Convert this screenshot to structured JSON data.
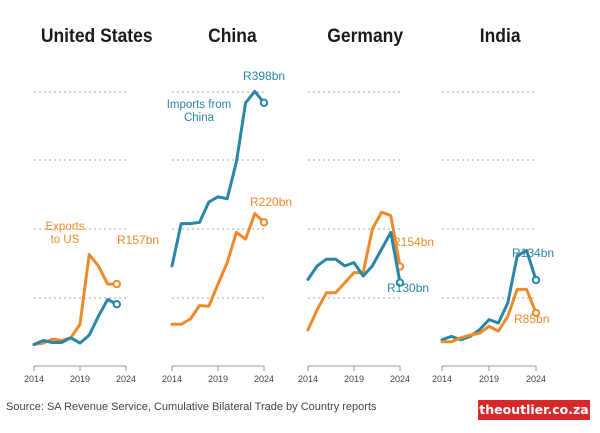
{
  "chart_data": {
    "type": "line",
    "x": [
      2014,
      2015,
      2016,
      2017,
      2018,
      2019,
      2020,
      2021,
      2022,
      2023,
      2024
    ],
    "ylim": [
      0,
      420
    ],
    "grid": true,
    "panels": [
      {
        "title": "United States",
        "xticks": [
          "2014",
          "2019",
          "2024"
        ],
        "series": [
          {
            "name": "Exports to US",
            "color": "#ef8a2b",
            "values": [
              38,
              40,
              46,
              44,
              48,
              68,
              172,
              155,
              128,
              128,
              null
            ],
            "end_label": "R157bn"
          },
          {
            "name": "",
            "color": "#2a86a6",
            "values": [
              38,
              44,
              41,
              41,
              48,
              40,
              52,
              80,
              105,
              98,
              null
            ],
            "end_label": ""
          }
        ],
        "annotations": [
          "Exports",
          "to US"
        ]
      },
      {
        "title": "China",
        "xticks": [
          "2014",
          "2019",
          "2024"
        ],
        "series": [
          {
            "name": "Imports from China",
            "color": "#2a86a6",
            "values": [
              155,
              218,
              218,
              220,
              250,
              258,
              255,
              310,
              398,
              415,
              398
            ],
            "end_label": "R398bn"
          },
          {
            "name": "",
            "color": "#ef8a2b",
            "values": [
              68,
              68,
              76,
              96,
              95,
              128,
              160,
              205,
              195,
              233,
              220
            ],
            "end_label": "R220bn"
          }
        ],
        "annotations": [
          "Imports from",
          "China"
        ]
      },
      {
        "title": "Germany",
        "xticks": [
          "2014",
          "2019",
          "2024"
        ],
        "series": [
          {
            "name": "",
            "color": "#ef8a2b",
            "values": [
              60,
              90,
              115,
              115,
              130,
              145,
              145,
              210,
              235,
              230,
              154
            ],
            "end_label": "R154bn"
          },
          {
            "name": "",
            "color": "#2a86a6",
            "values": [
              135,
              155,
              165,
              165,
              155,
              160,
              140,
              155,
              180,
              205,
              130
            ],
            "end_label": "R130bn"
          }
        ],
        "annotations": []
      },
      {
        "title": "India",
        "xticks": [
          "2014",
          "2019",
          "2024"
        ],
        "series": [
          {
            "name": "",
            "color": "#2a86a6",
            "values": [
              45,
              50,
              45,
              50,
              60,
              75,
              70,
              100,
              170,
              178,
              134
            ],
            "end_label": "R134bn"
          },
          {
            "name": "",
            "color": "#ef8a2b",
            "values": [
              42,
              42,
              48,
              52,
              55,
              65,
              58,
              80,
              120,
              120,
              85
            ],
            "end_label": "R85bn"
          }
        ],
        "annotations": []
      }
    ]
  },
  "source": "Source: SA Revenue Service, Cumulative Bilateral Trade by Country reports",
  "brand": "theoutlier.co.za"
}
